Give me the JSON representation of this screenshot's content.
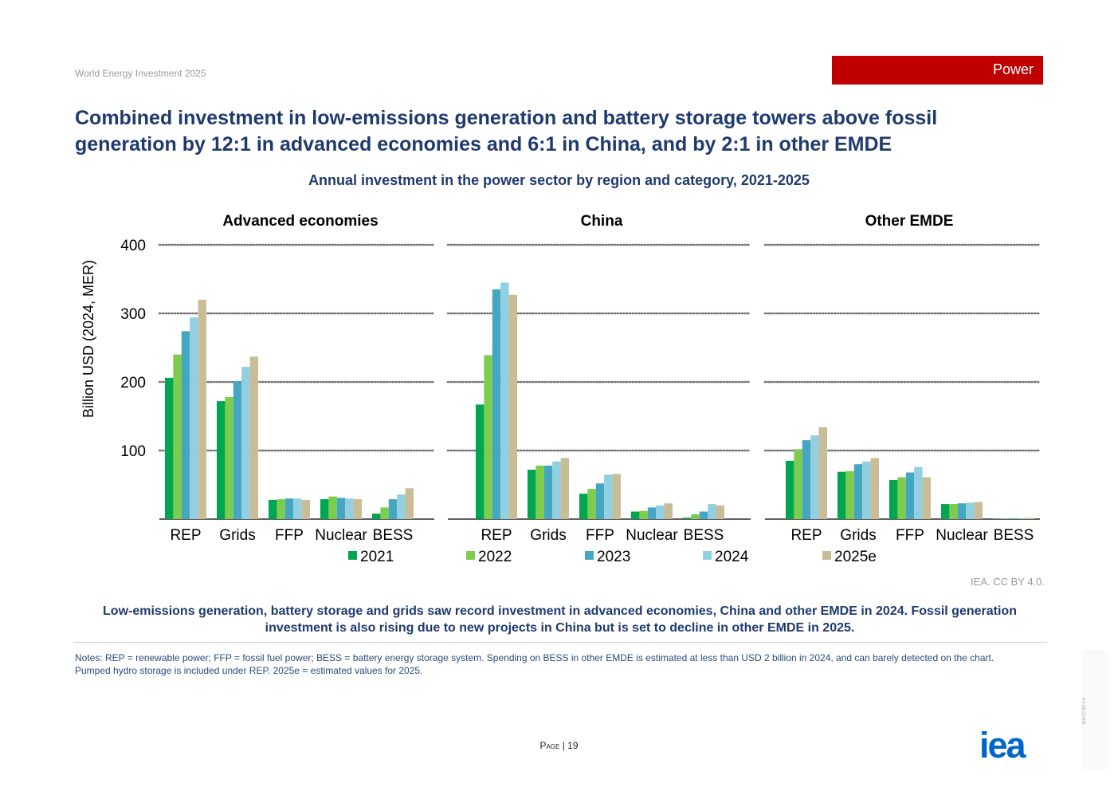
{
  "header": {
    "report_title": "World Energy Investment 2025",
    "section_label": "Power",
    "section_color": "#c00000"
  },
  "headline": "Combined investment in low-emissions generation and battery storage towers above fossil generation by 12:1 in advanced economies and 6:1 in China, and by 2:1 in other EMDE",
  "chart_data": {
    "type": "bar",
    "title": "Annual investment in the power sector by region and category, 2021-2025",
    "ylabel": "Billion USD (2024, MER)",
    "ylim": [
      0,
      400
    ],
    "yticks": [
      "100",
      "200",
      "300",
      "400"
    ],
    "grid": true,
    "categories": [
      "REP",
      "Grids",
      "FFP",
      "Nuclear",
      "BESS"
    ],
    "series_names": [
      "2021",
      "2022",
      "2023",
      "2024",
      "2025e"
    ],
    "series_colors": [
      "#00a550",
      "#7ccc4e",
      "#44a6c1",
      "#92cfe0",
      "#c8bd97"
    ],
    "panels": [
      {
        "name": "Advanced economies",
        "values": {
          "REP": [
            206,
            240,
            274,
            294,
            320
          ],
          "Grids": [
            172,
            178,
            201,
            222,
            237
          ],
          "FFP": [
            28,
            29,
            30,
            30,
            28
          ],
          "Nuclear": [
            29,
            33,
            31,
            30,
            29
          ],
          "BESS": [
            8,
            17,
            29,
            36,
            45
          ]
        }
      },
      {
        "name": "China",
        "values": {
          "REP": [
            167,
            239,
            335,
            345,
            327
          ],
          "Grids": [
            72,
            78,
            78,
            84,
            89
          ],
          "FFP": [
            37,
            44,
            52,
            65,
            66
          ],
          "Nuclear": [
            11,
            12,
            17,
            20,
            23
          ],
          "BESS": [
            2,
            7,
            11,
            22,
            20
          ]
        }
      },
      {
        "name": "Other EMDE",
        "values": {
          "REP": [
            85,
            102,
            115,
            122,
            134
          ],
          "Grids": [
            69,
            70,
            80,
            84,
            89
          ],
          "FFP": [
            57,
            61,
            68,
            76,
            61
          ],
          "Nuclear": [
            22,
            22,
            23,
            24,
            25
          ],
          "BESS": [
            0.5,
            0.8,
            1,
            1.5,
            1.8
          ]
        }
      }
    ]
  },
  "credit": "IEA. CC BY 4.0.",
  "caption": "Low-emissions generation, battery storage and grids saw record investment in advanced economies, China and other EMDE in 2024. Fossil generation investment is also rising due to new projects in China but is set to decline in other EMDE in 2025.",
  "notes": "Notes: REP = renewable power; FFP = fossil fuel power; BESS = battery energy storage system. Spending on BESS in other EMDE is estimated at less than USD 2 billion in 2024, and can barely detected on the chart. Pumped hydro storage is included under REP. 2025e = estimated values for 2025.",
  "footer": {
    "page_label": "Page",
    "page_number": "| 19",
    "side_credit": "IEA CC BY 4.0."
  },
  "logo": {
    "text": "iea",
    "color": "#0066cc"
  }
}
